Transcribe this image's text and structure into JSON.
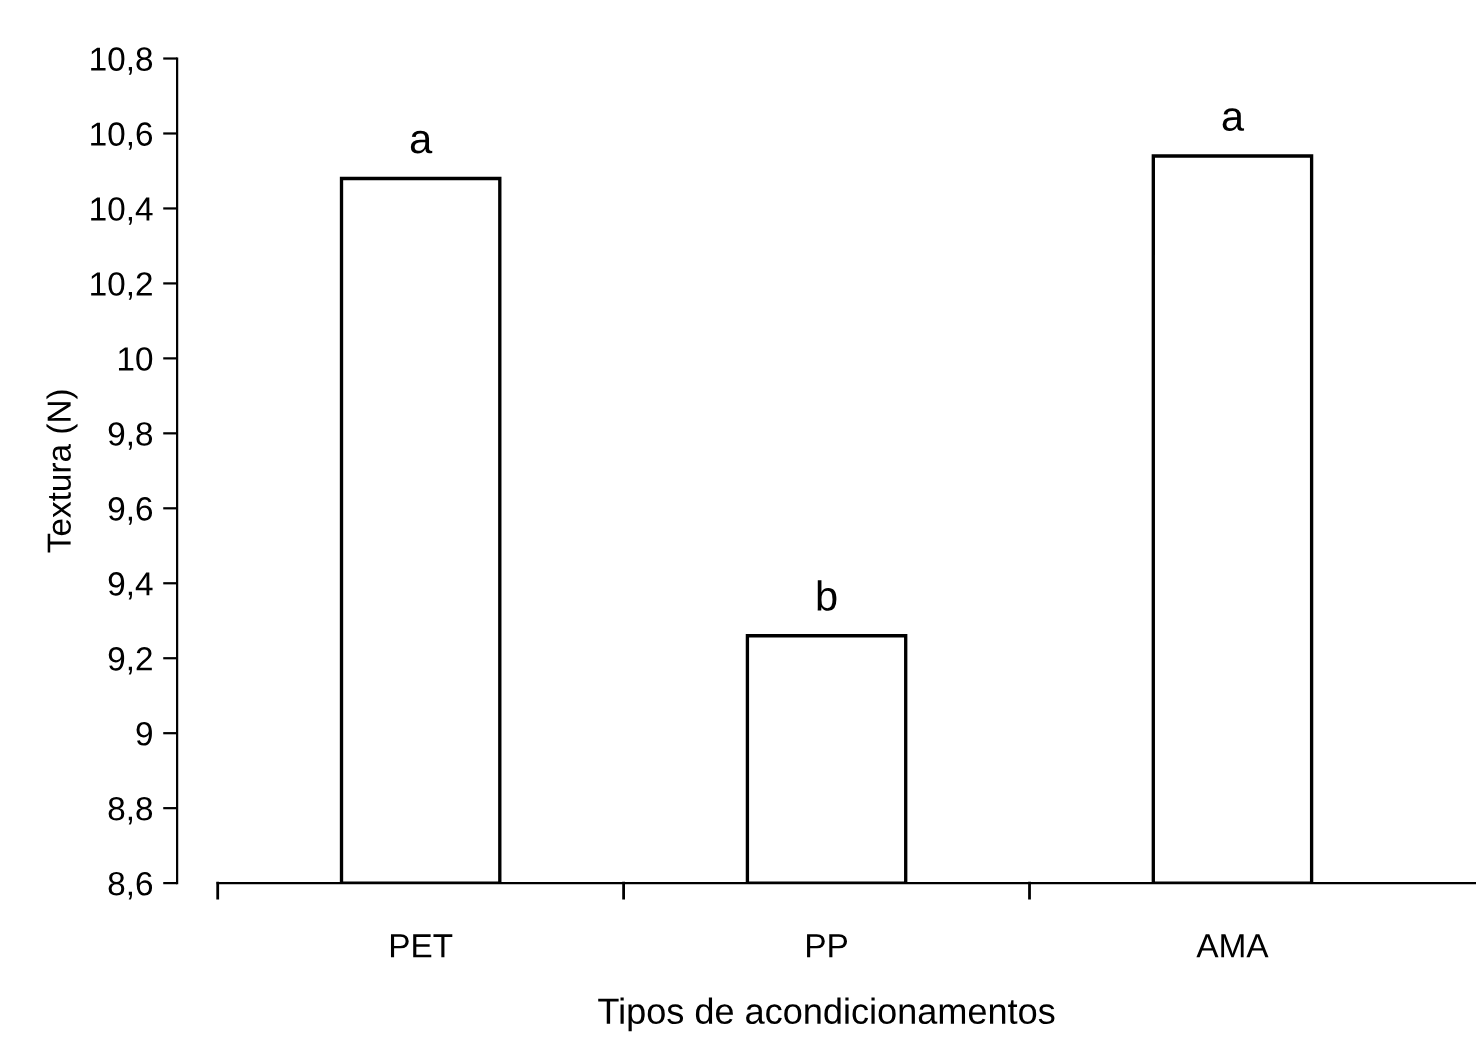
{
  "chart_data": {
    "type": "bar",
    "xlabel": "Tipos de acondicionamentos",
    "ylabel": "Textura (N)",
    "categories": [
      "PET",
      "PP",
      "AMA"
    ],
    "values": [
      10.48,
      9.26,
      10.54
    ],
    "color": "#ffffff",
    "ylim": [
      8.6,
      10.8
    ],
    "yticks": [
      {
        "value": 8.6,
        "label": "8,6"
      },
      {
        "value": 8.8,
        "label": "8,8"
      },
      {
        "value": 9,
        "label": "9"
      },
      {
        "value": 9.2,
        "label": "9,2"
      },
      {
        "value": 9.4,
        "label": "9,4"
      },
      {
        "value": 9.6,
        "label": "9,6"
      },
      {
        "value": 9.8,
        "label": "9,8"
      },
      {
        "value": 10,
        "label": "10"
      },
      {
        "value": 10.2,
        "label": "10,2"
      },
      {
        "value": 10.4,
        "label": "10,4"
      },
      {
        "value": 10.6,
        "label": "10,6"
      },
      {
        "value": 10.8,
        "label": "10,8"
      }
    ],
    "grid": false,
    "legend": false,
    "annotations": [
      {
        "text": "a",
        "x": "PET",
        "y": 10.48
      },
      {
        "text": "b",
        "x": "PP",
        "y": 9.26
      },
      {
        "text": "a",
        "x": "AMA",
        "y": 10.54
      }
    ]
  }
}
